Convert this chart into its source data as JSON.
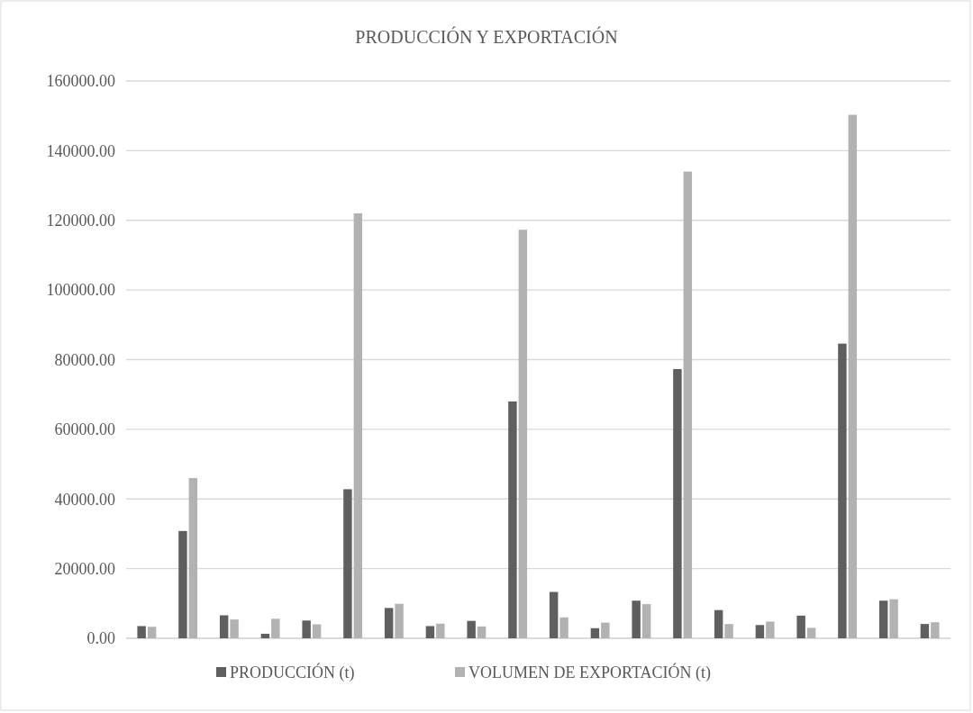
{
  "chart_data": {
    "type": "bar",
    "title": "PRODUCCIÓN Y EXPORTACIÓN",
    "categories": [
      null,
      null,
      null,
      null,
      null,
      null,
      null,
      null,
      null,
      null,
      null,
      null,
      null,
      null,
      null,
      null,
      null,
      null,
      null,
      null
    ],
    "series": [
      {
        "name": "PRODUCCIÓN (t)",
        "color": "#5f5f5f",
        "values": [
          3500,
          30800,
          6600,
          1300,
          5100,
          42800,
          8700,
          3500,
          5000,
          68000,
          13300,
          2900,
          10800,
          77300,
          8100,
          3800,
          6500,
          84600,
          10800,
          4100
        ]
      },
      {
        "name": "VOLUMEN DE EXPORTACIÓN (t)",
        "color": "#b2b2b2",
        "values": [
          3300,
          46000,
          5400,
          5600,
          4000,
          122000,
          9900,
          4200,
          3400,
          117300,
          6000,
          4500,
          9800,
          134000,
          4100,
          4800,
          3000,
          150300,
          11200,
          4600
        ]
      }
    ],
    "ylim": [
      0,
      160000
    ],
    "yticks": [
      {
        "value": 0,
        "label": "0.00"
      },
      {
        "value": 20000,
        "label": "20000.00"
      },
      {
        "value": 40000,
        "label": "40000.00"
      },
      {
        "value": 60000,
        "label": "60000.00"
      },
      {
        "value": 80000,
        "label": "80000.00"
      },
      {
        "value": 100000,
        "label": "100000.00"
      },
      {
        "value": 120000,
        "label": "120000.00"
      },
      {
        "value": 140000,
        "label": "140000.00"
      },
      {
        "value": 160000,
        "label": "160000.00"
      }
    ],
    "grid": "y",
    "legend": "bottom"
  }
}
